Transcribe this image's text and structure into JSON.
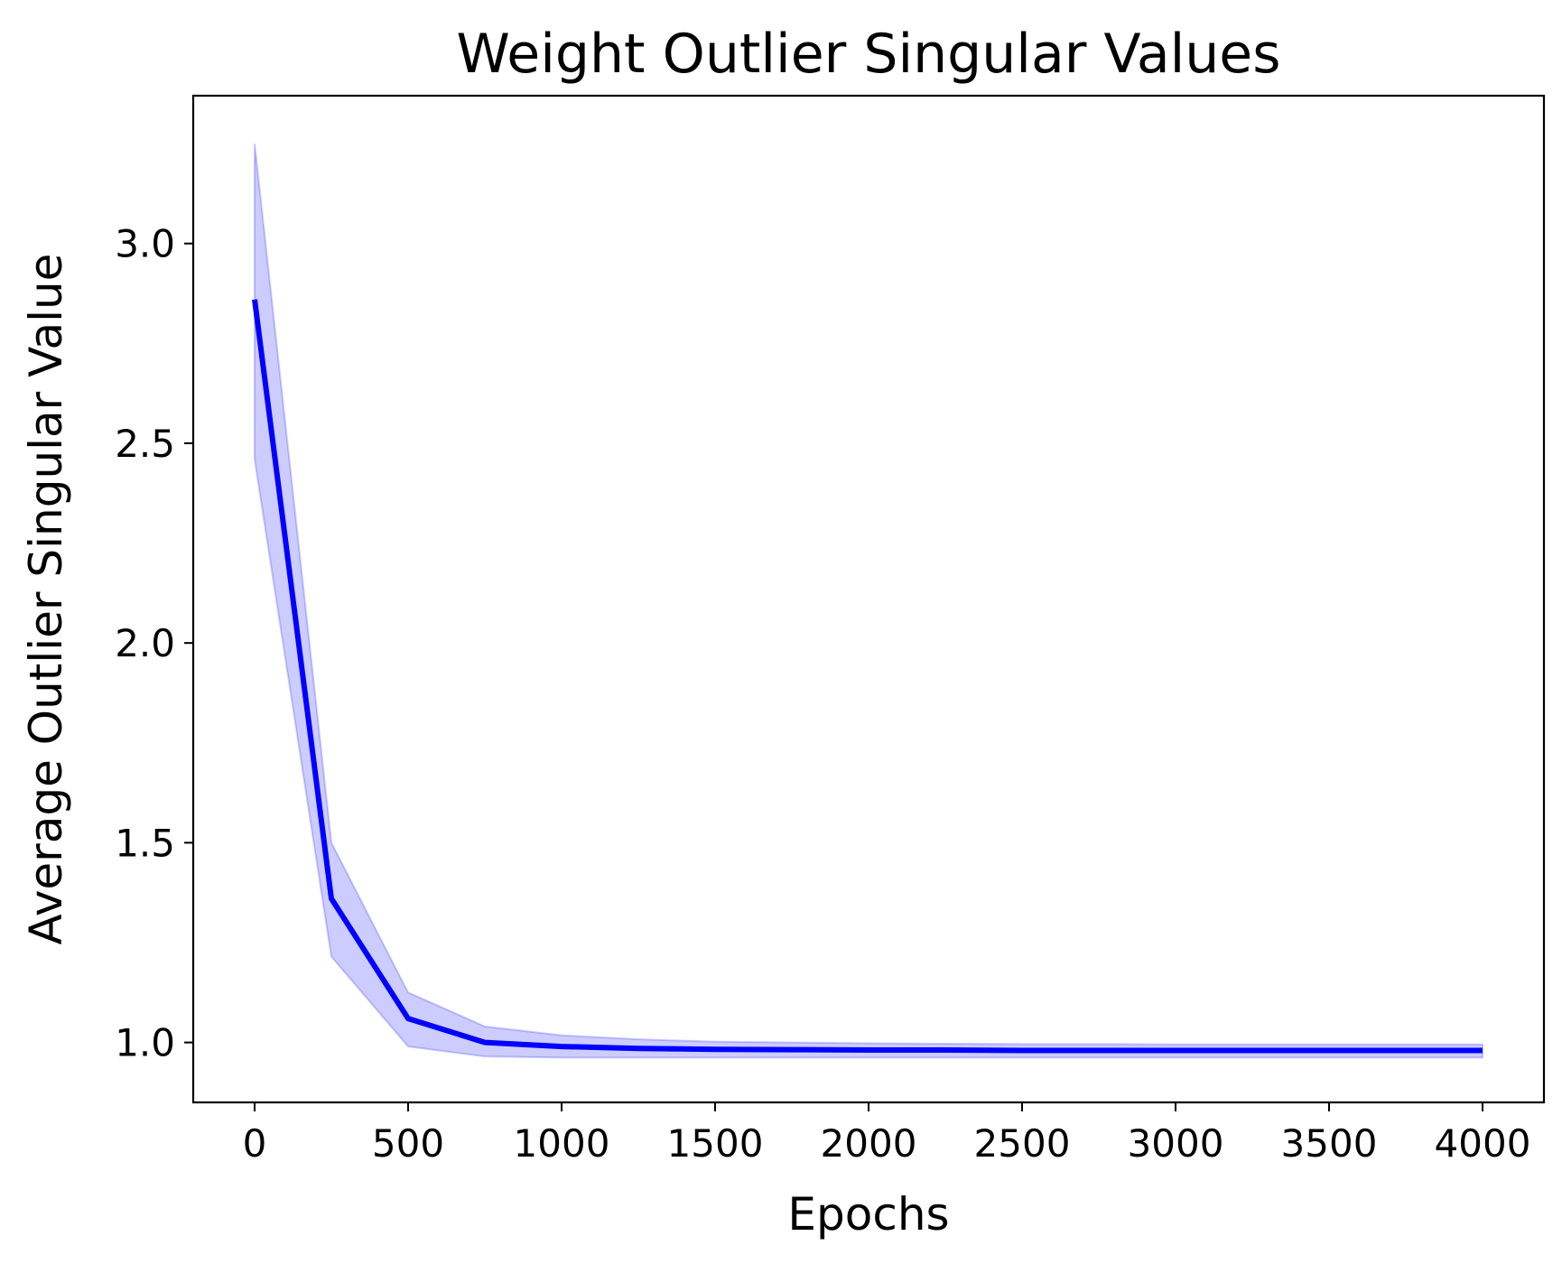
{
  "chart_data": {
    "type": "line",
    "title": "Weight Outlier Singular Values",
    "xlabel": "Epochs",
    "ylabel": "Average Outlier Singular Value",
    "xlim": [
      -200,
      4200
    ],
    "ylim": [
      0.85,
      3.37
    ],
    "xticks": [
      0,
      500,
      1000,
      1500,
      2000,
      2500,
      3000,
      3500,
      4000
    ],
    "xtick_labels": [
      "0",
      "500",
      "1000",
      "1500",
      "2000",
      "2500",
      "3000",
      "3500",
      "4000"
    ],
    "yticks": [
      1.0,
      1.5,
      2.0,
      2.5,
      3.0
    ],
    "ytick_labels": [
      "1.0",
      "1.5",
      "2.0",
      "2.5",
      "3.0"
    ],
    "grid": false,
    "legend": "none",
    "series": [
      {
        "color": "#0000ff",
        "band_color": "#0000ff",
        "x": [
          0,
          250,
          500,
          750,
          1000,
          1250,
          1500,
          1750,
          2000,
          2250,
          2500,
          2750,
          3000,
          3250,
          3500,
          3750,
          4000
        ],
        "values": [
          2.86,
          1.36,
          1.06,
          1.0,
          0.99,
          0.985,
          0.983,
          0.982,
          0.981,
          0.981,
          0.98,
          0.98,
          0.98,
          0.98,
          0.98,
          0.98,
          0.98
        ],
        "lower": [
          2.46,
          1.215,
          0.99,
          0.965,
          0.962,
          0.962,
          0.962,
          0.962,
          0.962,
          0.962,
          0.962,
          0.962,
          0.962,
          0.962,
          0.962,
          0.962,
          0.962
        ],
        "upper": [
          3.25,
          1.5,
          1.125,
          1.04,
          1.018,
          1.008,
          1.002,
          1.0,
          0.998,
          0.997,
          0.996,
          0.996,
          0.995,
          0.995,
          0.995,
          0.995,
          0.995
        ]
      }
    ]
  }
}
